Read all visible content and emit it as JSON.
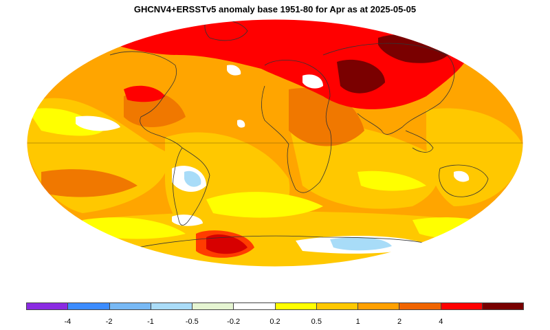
{
  "title": "GHCNV4+ERSSTv5 anomaly base 1951-80 for Apr as at 2025-05-05",
  "colors": {
    "ocean_base": "#FFA500",
    "deep_red": "#7A0000",
    "red": "#FF0000",
    "orange_red": "#F07800",
    "orange": "#FFA500",
    "yellow_orange": "#FFC800",
    "yellow": "#FFFF00",
    "white": "#FFFFFF",
    "light_blue": "#A8DCF8",
    "coast": "#333333"
  },
  "legend": {
    "swatches": [
      {
        "color": "#8A2BE2"
      },
      {
        "color": "#3C8CFF"
      },
      {
        "color": "#78B9F5"
      },
      {
        "color": "#AADCF8"
      },
      {
        "color": "#E6F5D2"
      },
      {
        "color": "#FFFFFF"
      },
      {
        "color": "#FFFF00"
      },
      {
        "color": "#FFC800"
      },
      {
        "color": "#FFA000"
      },
      {
        "color": "#F06400"
      },
      {
        "color": "#FF0000"
      },
      {
        "color": "#780000"
      }
    ],
    "labels": [
      "-4",
      "-2",
      "-1",
      "-0.5",
      "-0.2",
      "0.2",
      "0.5",
      "1",
      "2",
      "4"
    ]
  },
  "map": {
    "projection": "Mollweide",
    "regions": [
      {
        "name": "northern-siberia-hotspot",
        "color": "#7A0000"
      },
      {
        "name": "central-asia-hotspot",
        "color": "#7A0000"
      },
      {
        "name": "antarctic-peninsula-hotspot",
        "color": "#7A0000"
      },
      {
        "name": "eurasia-warm",
        "color": "#FF0000"
      },
      {
        "name": "north-america-warm",
        "color": "#FF0000"
      },
      {
        "name": "antarctica-cool",
        "color": "#A8DCF8"
      },
      {
        "name": "south-america-cool",
        "color": "#A8DCF8"
      }
    ]
  }
}
